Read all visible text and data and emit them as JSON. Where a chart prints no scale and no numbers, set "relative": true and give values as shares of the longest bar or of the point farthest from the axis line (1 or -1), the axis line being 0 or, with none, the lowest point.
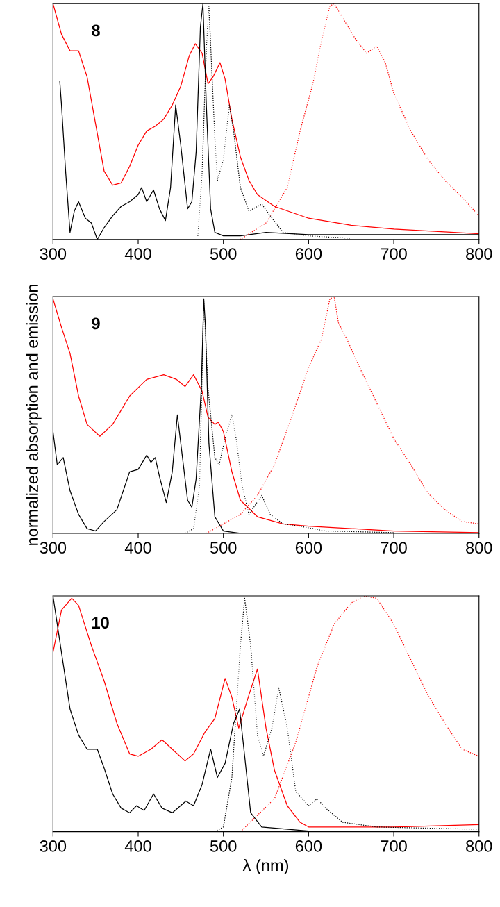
{
  "chart_data": [
    {
      "type": "line",
      "relative": true,
      "xlim": [
        300,
        800
      ],
      "xticks": [
        300,
        400,
        500,
        600,
        700,
        800
      ],
      "annotations": [
        "8"
      ],
      "series": [
        {
          "color": "#ff0000",
          "line_style": "solid",
          "x": [
            300,
            310,
            320,
            330,
            340,
            350,
            360,
            370,
            380,
            390,
            400,
            410,
            420,
            430,
            440,
            450,
            460,
            467,
            475,
            482,
            488,
            496,
            502,
            510,
            520,
            530,
            540,
            560,
            600,
            650,
            700,
            800
          ],
          "values": [
            1.0,
            0.87,
            0.8,
            0.8,
            0.69,
            0.49,
            0.29,
            0.23,
            0.24,
            0.31,
            0.4,
            0.46,
            0.48,
            0.51,
            0.57,
            0.65,
            0.78,
            0.83,
            0.79,
            0.66,
            0.69,
            0.75,
            0.68,
            0.51,
            0.35,
            0.25,
            0.19,
            0.14,
            0.09,
            0.06,
            0.044,
            0.024
          ]
        },
        {
          "color": "#000000",
          "line_style": "solid",
          "x": [
            308,
            310,
            315,
            320,
            325,
            330,
            338,
            345,
            352,
            360,
            370,
            380,
            390,
            400,
            404,
            410,
            418,
            425,
            432,
            438,
            444,
            450,
            458,
            463,
            468,
            473,
            476,
            480,
            485,
            490,
            500,
            520,
            550,
            600,
            700,
            800
          ],
          "values": [
            0.67,
            0.57,
            0.28,
            0.03,
            0.12,
            0.16,
            0.09,
            0.07,
            0.0,
            0.05,
            0.1,
            0.14,
            0.16,
            0.19,
            0.22,
            0.16,
            0.21,
            0.13,
            0.08,
            0.22,
            0.57,
            0.4,
            0.13,
            0.16,
            0.37,
            0.9,
            1.0,
            0.57,
            0.13,
            0.03,
            0.015,
            0.015,
            0.03,
            0.02,
            0.02,
            0.02
          ]
        },
        {
          "color": "#000000",
          "line_style": "dotted",
          "x": [
            470,
            475,
            480,
            483,
            490,
            493,
            500,
            507,
            512,
            520,
            530,
            545,
            555,
            570,
            600,
            650
          ],
          "values": [
            0.015,
            0.28,
            0.81,
            0.99,
            0.43,
            0.25,
            0.34,
            0.57,
            0.46,
            0.22,
            0.12,
            0.15,
            0.1,
            0.03,
            0.015,
            0.005
          ]
        },
        {
          "color": "#ff0000",
          "line_style": "dotted",
          "x": [
            520,
            550,
            575,
            590,
            605,
            615,
            625,
            630,
            640,
            655,
            668,
            680,
            690,
            700,
            720,
            740,
            760,
            780,
            800
          ],
          "values": [
            0.0,
            0.07,
            0.22,
            0.46,
            0.66,
            0.84,
            0.99,
            1.0,
            0.94,
            0.85,
            0.79,
            0.82,
            0.75,
            0.62,
            0.46,
            0.34,
            0.25,
            0.18,
            0.1
          ]
        }
      ]
    },
    {
      "type": "line",
      "relative": true,
      "xlim": [
        300,
        800
      ],
      "xticks": [
        300,
        400,
        500,
        600,
        700,
        800
      ],
      "ylabel": "normalized absorption and emission",
      "annotations": [
        "9"
      ],
      "series": [
        {
          "color": "#ff0000",
          "line_style": "solid",
          "x": [
            300,
            310,
            320,
            330,
            340,
            355,
            370,
            390,
            410,
            430,
            445,
            455,
            465,
            475,
            482,
            490,
            494,
            500,
            510,
            520,
            540,
            570,
            600,
            700,
            800
          ],
          "values": [
            0.99,
            0.87,
            0.76,
            0.58,
            0.46,
            0.41,
            0.46,
            0.58,
            0.65,
            0.67,
            0.65,
            0.62,
            0.67,
            0.6,
            0.49,
            0.46,
            0.47,
            0.43,
            0.26,
            0.14,
            0.07,
            0.04,
            0.03,
            0.01,
            0.003
          ]
        },
        {
          "color": "#000000",
          "line_style": "solid",
          "x": [
            300,
            305,
            312,
            320,
            330,
            340,
            350,
            360,
            375,
            390,
            400,
            410,
            415,
            420,
            425,
            433,
            440,
            446,
            452,
            458,
            463,
            468,
            474,
            477,
            479,
            483,
            490,
            500,
            520,
            800
          ],
          "values": [
            0.43,
            0.29,
            0.32,
            0.18,
            0.08,
            0.02,
            0.01,
            0.05,
            0.1,
            0.26,
            0.27,
            0.33,
            0.3,
            0.32,
            0.24,
            0.13,
            0.26,
            0.5,
            0.32,
            0.14,
            0.11,
            0.23,
            0.61,
            0.99,
            0.87,
            0.38,
            0.07,
            0.01,
            0.0,
            0.0
          ]
        },
        {
          "color": "#000000",
          "line_style": "dotted",
          "x": [
            455,
            465,
            472,
            477,
            482,
            490,
            495,
            502,
            510,
            515,
            522,
            530,
            545,
            555,
            570,
            590,
            620,
            700
          ],
          "values": [
            0.0,
            0.02,
            0.2,
            0.99,
            0.61,
            0.32,
            0.29,
            0.4,
            0.5,
            0.4,
            0.2,
            0.08,
            0.16,
            0.08,
            0.04,
            0.03,
            0.01,
            0.003
          ]
        },
        {
          "color": "#ff0000",
          "line_style": "dotted",
          "x": [
            480,
            520,
            540,
            560,
            580,
            600,
            615,
            625,
            630,
            635,
            645,
            660,
            680,
            700,
            720,
            740,
            760,
            780,
            800
          ],
          "values": [
            0.0,
            0.08,
            0.16,
            0.29,
            0.49,
            0.7,
            0.82,
            0.99,
            1.0,
            0.89,
            0.82,
            0.7,
            0.55,
            0.4,
            0.29,
            0.17,
            0.1,
            0.05,
            0.04
          ]
        }
      ]
    },
    {
      "type": "line",
      "relative": true,
      "xlim": [
        300,
        800
      ],
      "xticks": [
        300,
        400,
        500,
        600,
        700,
        800
      ],
      "xlabel": "λ (nm)",
      "annotations": [
        "10"
      ],
      "series": [
        {
          "color": "#ff0000",
          "line_style": "solid",
          "x": [
            300,
            310,
            322,
            330,
            345,
            360,
            375,
            390,
            400,
            415,
            428,
            440,
            455,
            465,
            478,
            490,
            502,
            510,
            518,
            530,
            540,
            550,
            560,
            575,
            590,
            600,
            700,
            800
          ],
          "values": [
            0.76,
            0.94,
            0.99,
            0.96,
            0.79,
            0.64,
            0.46,
            0.33,
            0.32,
            0.35,
            0.39,
            0.35,
            0.3,
            0.33,
            0.42,
            0.48,
            0.65,
            0.57,
            0.44,
            0.58,
            0.69,
            0.44,
            0.26,
            0.11,
            0.04,
            0.02,
            0.02,
            0.03
          ]
        },
        {
          "color": "#000000",
          "line_style": "solid",
          "x": [
            300,
            310,
            320,
            330,
            340,
            352,
            360,
            370,
            380,
            390,
            398,
            407,
            418,
            428,
            440,
            456,
            465,
            475,
            485,
            493,
            502,
            512,
            519,
            525,
            532,
            545,
            600,
            800
          ],
          "values": [
            1.0,
            0.76,
            0.52,
            0.41,
            0.35,
            0.35,
            0.27,
            0.16,
            0.1,
            0.08,
            0.11,
            0.09,
            0.16,
            0.1,
            0.08,
            0.13,
            0.11,
            0.2,
            0.35,
            0.23,
            0.29,
            0.46,
            0.52,
            0.32,
            0.08,
            0.02,
            0.003,
            0.0
          ]
        },
        {
          "color": "#000000",
          "line_style": "dotted",
          "x": [
            490,
            500,
            510,
            520,
            525,
            532,
            540,
            547,
            557,
            565,
            575,
            585,
            600,
            610,
            620,
            640,
            680,
            800
          ],
          "values": [
            0.0,
            0.02,
            0.23,
            0.79,
            0.99,
            0.79,
            0.41,
            0.32,
            0.44,
            0.61,
            0.44,
            0.17,
            0.11,
            0.14,
            0.1,
            0.04,
            0.02,
            0.01
          ]
        },
        {
          "color": "#ff0000",
          "line_style": "dotted",
          "x": [
            520,
            560,
            585,
            610,
            630,
            650,
            665,
            680,
            700,
            720,
            740,
            760,
            780,
            800
          ],
          "values": [
            0.0,
            0.14,
            0.38,
            0.7,
            0.88,
            0.97,
            1.0,
            0.99,
            0.88,
            0.73,
            0.58,
            0.46,
            0.35,
            0.32
          ]
        }
      ]
    }
  ]
}
